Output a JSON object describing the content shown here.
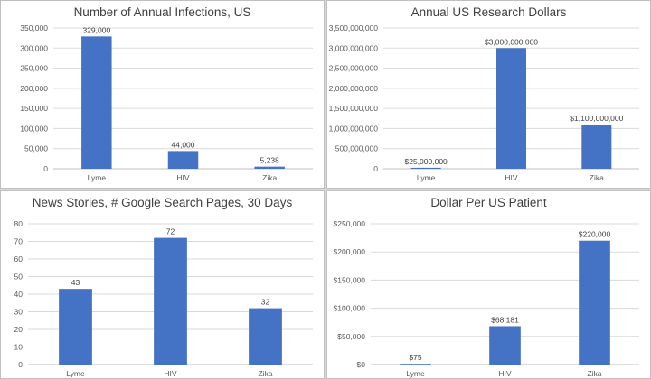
{
  "chart_data": [
    {
      "type": "bar",
      "title": "Number of Annual Infections, US",
      "categories": [
        "Lyme",
        "HIV",
        "Zika"
      ],
      "values": [
        329000,
        44000,
        5238
      ],
      "data_labels": [
        "329,000",
        "44,000",
        "5,238"
      ],
      "ylim": [
        0,
        350000
      ],
      "yticks": [
        0,
        50000,
        100000,
        150000,
        200000,
        250000,
        300000,
        350000
      ],
      "ytick_labels": [
        "0",
        "50,000",
        "100,000",
        "150,000",
        "200,000",
        "250,000",
        "300,000",
        "350,000"
      ],
      "grid": true,
      "color": "#4472c4"
    },
    {
      "type": "bar",
      "title": "Annual US Research Dollars",
      "categories": [
        "Lyme",
        "HIV",
        "Zika"
      ],
      "values": [
        25000000,
        3000000000,
        1100000000
      ],
      "data_labels": [
        "$25,000,000",
        "$3,000,000,000",
        "$1,100,000,000"
      ],
      "ylim": [
        0,
        3500000000
      ],
      "yticks": [
        0,
        500000000,
        1000000000,
        1500000000,
        2000000000,
        2500000000,
        3000000000,
        3500000000
      ],
      "ytick_labels": [
        "0",
        "500,000,000",
        "1,000,000,000",
        "1,500,000,000",
        "2,000,000,000",
        "2,500,000,000",
        "3,000,000,000",
        "3,500,000,000"
      ],
      "grid": true,
      "color": "#4472c4"
    },
    {
      "type": "bar",
      "title": "News Stories, # Google Search Pages, 30 Days",
      "categories": [
        "Lyme",
        "HIV",
        "Zika"
      ],
      "values": [
        43,
        72,
        32
      ],
      "data_labels": [
        "43",
        "72",
        "32"
      ],
      "ylim": [
        0,
        80
      ],
      "yticks": [
        0,
        10,
        20,
        30,
        40,
        50,
        60,
        70,
        80
      ],
      "ytick_labels": [
        "0",
        "10",
        "20",
        "30",
        "40",
        "50",
        "60",
        "70",
        "80"
      ],
      "grid": true,
      "color": "#4472c4"
    },
    {
      "type": "bar",
      "title": "Dollar Per US Patient",
      "categories": [
        "Lyme",
        "HIV",
        "Zika"
      ],
      "values": [
        75,
        68181,
        220000
      ],
      "data_labels": [
        "$75",
        "$68,181",
        "$220,000"
      ],
      "ylim": [
        0,
        250000
      ],
      "yticks": [
        0,
        50000,
        100000,
        150000,
        200000,
        250000
      ],
      "ytick_labels": [
        "$0",
        "$50,000",
        "$100,000",
        "$150,000",
        "$200,000",
        "$250,000"
      ],
      "grid": true,
      "color": "#4472c4"
    }
  ]
}
